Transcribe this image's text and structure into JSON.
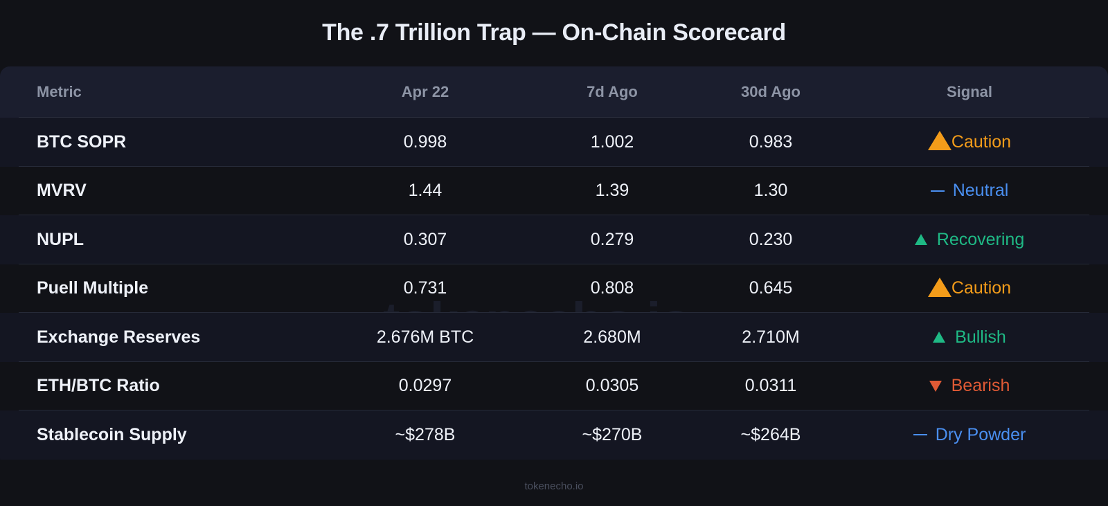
{
  "title": "The .7 Trillion Trap — On-Chain Scorecard",
  "watermark": "tokenecho.io",
  "footer": "tokenecho.io",
  "colors": {
    "caution": "#f39c1a",
    "neutral": "#4a8ff0",
    "bullish": "#1fb985",
    "bearish": "#e05a35",
    "background": "#111217",
    "header_bg": "#1b1e2e",
    "stripe_bg": "#141622"
  },
  "table": {
    "headers": [
      "Metric",
      "Apr 22",
      "7d Ago",
      "30d Ago",
      "Signal"
    ],
    "rows": [
      {
        "metric": "BTC SOPR",
        "apr22": "0.998",
        "d7": "1.002",
        "d30": "0.983",
        "signal": "Caution",
        "signal_icon": "warning-triangle-icon",
        "signal_type": "caution"
      },
      {
        "metric": "MVRV",
        "apr22": "1.44",
        "d7": "1.39",
        "d30": "1.30",
        "signal": "Neutral",
        "signal_icon": "dash-icon",
        "signal_type": "neutral"
      },
      {
        "metric": "NUPL",
        "apr22": "0.307",
        "d7": "0.279",
        "d30": "0.230",
        "signal": "Recovering",
        "signal_icon": "triangle-up-icon",
        "signal_type": "bullish"
      },
      {
        "metric": "Puell Multiple",
        "apr22": "0.731",
        "d7": "0.808",
        "d30": "0.645",
        "signal": "Caution",
        "signal_icon": "warning-triangle-icon",
        "signal_type": "caution"
      },
      {
        "metric": "Exchange Reserves",
        "apr22": "2.676M BTC",
        "d7": "2.680M",
        "d30": "2.710M",
        "signal": "Bullish",
        "signal_icon": "triangle-up-icon",
        "signal_type": "bullish"
      },
      {
        "metric": "ETH/BTC Ratio",
        "apr22": "0.0297",
        "d7": "0.0305",
        "d30": "0.0311",
        "signal": "Bearish",
        "signal_icon": "triangle-down-icon",
        "signal_type": "bearish"
      },
      {
        "metric": "Stablecoin Supply",
        "apr22": "~$278B",
        "d7": "~$270B",
        "d30": "~$264B",
        "signal": "Dry Powder",
        "signal_icon": "dash-icon",
        "signal_type": "neutral"
      }
    ]
  }
}
